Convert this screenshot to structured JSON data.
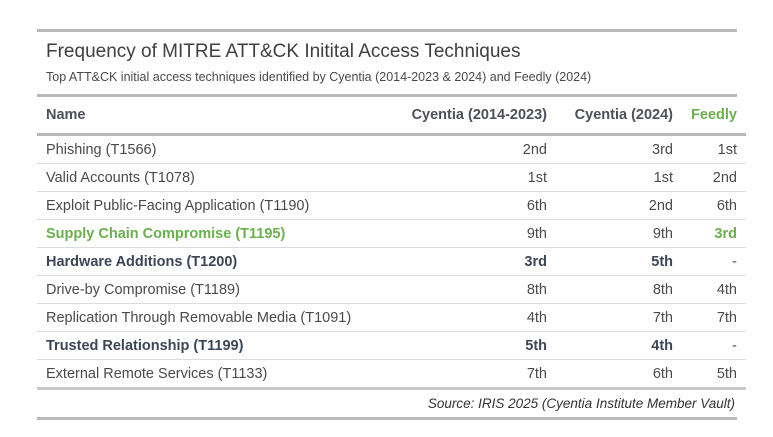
{
  "chart_data": {
    "type": "table",
    "title": "Frequency of MITRE ATT&CK Initital Access Techniques",
    "subtitle": "Top ATT&CK initial access techniques identified by Cyentia (2014-2023 & 2024) and Feedly (2024)",
    "columns": [
      "Name",
      "Cyentia (2014-2023)",
      "Cyentia (2024)",
      "Feedly"
    ],
    "rows": [
      {
        "name": "Phishing (T1566)",
        "cyentia_2014_2023": "2nd",
        "cyentia_2024": "3rd",
        "feedly": "1st",
        "style": "normal"
      },
      {
        "name": "Valid Accounts (T1078)",
        "cyentia_2014_2023": "1st",
        "cyentia_2024": "1st",
        "feedly": "2nd",
        "style": "normal"
      },
      {
        "name": "Exploit Public-Facing Application (T1190)",
        "cyentia_2014_2023": "6th",
        "cyentia_2024": "2nd",
        "feedly": "6th",
        "style": "normal"
      },
      {
        "name": "Supply Chain Compromise (T1195)",
        "cyentia_2014_2023": "9th",
        "cyentia_2024": "9th",
        "feedly": "3rd",
        "style": "highlight"
      },
      {
        "name": "Hardware Additions (T1200)",
        "cyentia_2014_2023": "3rd",
        "cyentia_2024": "5th",
        "feedly": "-",
        "style": "bold"
      },
      {
        "name": "Drive-by Compromise (T1189)",
        "cyentia_2014_2023": "8th",
        "cyentia_2024": "8th",
        "feedly": "4th",
        "style": "normal"
      },
      {
        "name": "Replication Through Removable Media (T1091)",
        "cyentia_2014_2023": "4th",
        "cyentia_2024": "7th",
        "feedly": "7th",
        "style": "normal"
      },
      {
        "name": "Trusted Relationship (T1199)",
        "cyentia_2014_2023": "5th",
        "cyentia_2024": "4th",
        "feedly": "-",
        "style": "bold"
      },
      {
        "name": "External Remote Services (T1133)",
        "cyentia_2014_2023": "7th",
        "cyentia_2024": "6th",
        "feedly": "5th",
        "style": "normal"
      }
    ],
    "source": "Source: IRIS 2025 (Cyentia Institute Member Vault)",
    "colors": {
      "highlight": "#6ab04c",
      "bold_text": "#3d4656",
      "rule": "#b9b9b9"
    }
  }
}
